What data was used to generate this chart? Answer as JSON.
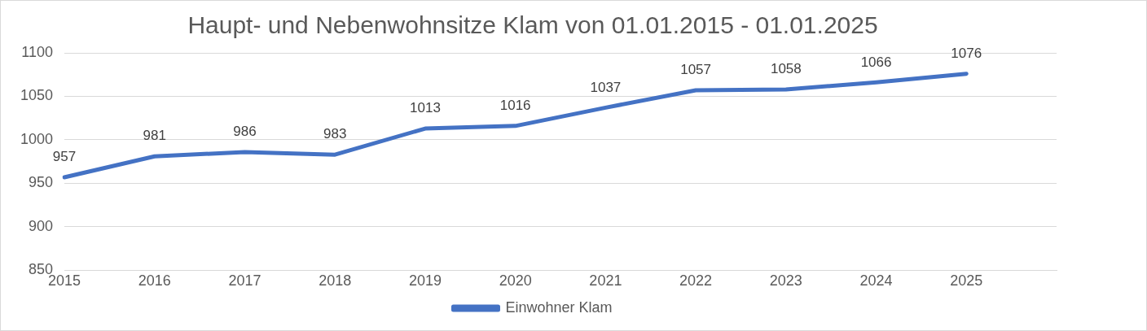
{
  "chart_data": {
    "type": "line",
    "title": "Haupt- und Nebenwohnsitze Klam von 01.01.2015 - 01.01.2025",
    "categories": [
      "2015",
      "2016",
      "2017",
      "2018",
      "2019",
      "2020",
      "2021",
      "2022",
      "2023",
      "2024",
      "2025",
      null
    ],
    "series": [
      {
        "name": "Einwohner Klam",
        "color": "#4472c4",
        "values": [
          957,
          981,
          986,
          983,
          1013,
          1016,
          1037,
          1057,
          1058,
          1066,
          1076,
          null
        ]
      }
    ],
    "ylim": [
      850,
      1100
    ],
    "yticks": [
      850,
      900,
      950,
      1000,
      1050,
      1100
    ],
    "grid": "y",
    "legend": "bottom",
    "data_labels": true,
    "marker": "none",
    "line_style": "solid"
  }
}
